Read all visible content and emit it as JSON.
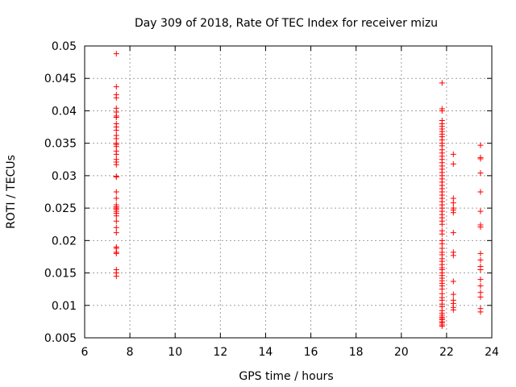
{
  "chart_data": {
    "type": "scatter",
    "title": "Day 309 of 2018, Rate Of TEC Index for receiver mizu",
    "xlabel": "GPS time / hours",
    "ylabel": "ROTI / TECUs",
    "xlim": [
      6,
      24
    ],
    "ylim": [
      0.005,
      0.05
    ],
    "xticks": [
      6,
      8,
      10,
      12,
      14,
      16,
      18,
      20,
      22,
      24
    ],
    "xtick_labels": [
      "6",
      "8",
      "10",
      "12",
      "14",
      "16",
      "18",
      "20",
      "22",
      "24"
    ],
    "yticks": [
      0.005,
      0.01,
      0.015,
      0.02,
      0.025,
      0.03,
      0.035,
      0.04,
      0.045,
      0.05
    ],
    "ytick_labels": [
      "0.005",
      "0.01",
      "0.015",
      "0.02",
      "0.025",
      "0.03",
      "0.035",
      "0.04",
      "0.045",
      "0.05"
    ],
    "grid": true,
    "marker": "plus",
    "color": "#ff0000",
    "series": [
      {
        "name": "ROTI",
        "points": [
          [
            7.4,
            0.0488
          ],
          [
            7.4,
            0.0437
          ],
          [
            7.4,
            0.0425
          ],
          [
            7.4,
            0.042
          ],
          [
            7.4,
            0.0404
          ],
          [
            7.4,
            0.0398
          ],
          [
            7.4,
            0.0392
          ],
          [
            7.4,
            0.039
          ],
          [
            7.4,
            0.038
          ],
          [
            7.4,
            0.0375
          ],
          [
            7.4,
            0.037
          ],
          [
            7.4,
            0.0362
          ],
          [
            7.4,
            0.0357
          ],
          [
            7.4,
            0.035
          ],
          [
            7.4,
            0.0348
          ],
          [
            7.4,
            0.0345
          ],
          [
            7.4,
            0.0338
          ],
          [
            7.4,
            0.0333
          ],
          [
            7.4,
            0.0325
          ],
          [
            7.4,
            0.0321
          ],
          [
            7.4,
            0.0317
          ],
          [
            7.4,
            0.0299
          ],
          [
            7.4,
            0.0298
          ],
          [
            7.4,
            0.0275
          ],
          [
            7.4,
            0.0265
          ],
          [
            7.4,
            0.0255
          ],
          [
            7.4,
            0.0252
          ],
          [
            7.4,
            0.025
          ],
          [
            7.4,
            0.0248
          ],
          [
            7.4,
            0.0245
          ],
          [
            7.4,
            0.0242
          ],
          [
            7.4,
            0.0238
          ],
          [
            7.4,
            0.023
          ],
          [
            7.4,
            0.022
          ],
          [
            7.4,
            0.0212
          ],
          [
            7.4,
            0.019
          ],
          [
            7.4,
            0.0188
          ],
          [
            7.4,
            0.0182
          ],
          [
            7.4,
            0.018
          ],
          [
            7.4,
            0.0155
          ],
          [
            7.4,
            0.015
          ],
          [
            7.4,
            0.0145
          ],
          [
            21.8,
            0.0443
          ],
          [
            21.8,
            0.0403
          ],
          [
            21.8,
            0.04
          ],
          [
            21.8,
            0.0385
          ],
          [
            21.8,
            0.038
          ],
          [
            21.8,
            0.0376
          ],
          [
            21.8,
            0.0372
          ],
          [
            21.8,
            0.0368
          ],
          [
            21.8,
            0.0364
          ],
          [
            21.8,
            0.036
          ],
          [
            21.8,
            0.0355
          ],
          [
            21.8,
            0.035
          ],
          [
            21.8,
            0.0346
          ],
          [
            21.8,
            0.034
          ],
          [
            21.8,
            0.0335
          ],
          [
            21.8,
            0.033
          ],
          [
            21.8,
            0.0325
          ],
          [
            21.8,
            0.032
          ],
          [
            21.8,
            0.0315
          ],
          [
            21.8,
            0.031
          ],
          [
            21.8,
            0.0305
          ],
          [
            21.8,
            0.03
          ],
          [
            21.8,
            0.0295
          ],
          [
            21.8,
            0.029
          ],
          [
            21.8,
            0.0285
          ],
          [
            21.8,
            0.028
          ],
          [
            21.8,
            0.0275
          ],
          [
            21.8,
            0.027
          ],
          [
            21.8,
            0.0265
          ],
          [
            21.8,
            0.026
          ],
          [
            21.8,
            0.0255
          ],
          [
            21.8,
            0.025
          ],
          [
            21.8,
            0.0245
          ],
          [
            21.8,
            0.024
          ],
          [
            21.8,
            0.0235
          ],
          [
            21.8,
            0.023
          ],
          [
            21.8,
            0.0225
          ],
          [
            21.8,
            0.0215
          ],
          [
            21.8,
            0.021
          ],
          [
            21.8,
            0.02
          ],
          [
            21.8,
            0.0195
          ],
          [
            21.8,
            0.0188
          ],
          [
            21.8,
            0.0182
          ],
          [
            21.8,
            0.0178
          ],
          [
            21.8,
            0.0172
          ],
          [
            21.8,
            0.0168
          ],
          [
            21.8,
            0.0163
          ],
          [
            21.8,
            0.0158
          ],
          [
            21.8,
            0.0155
          ],
          [
            21.8,
            0.015
          ],
          [
            21.8,
            0.0146
          ],
          [
            21.8,
            0.0142
          ],
          [
            21.8,
            0.0138
          ],
          [
            21.8,
            0.0134
          ],
          [
            21.8,
            0.013
          ],
          [
            21.8,
            0.0125
          ],
          [
            21.8,
            0.0118
          ],
          [
            21.8,
            0.0112
          ],
          [
            21.8,
            0.0108
          ],
          [
            21.8,
            0.0102
          ],
          [
            21.8,
            0.0098
          ],
          [
            21.8,
            0.0092
          ],
          [
            21.8,
            0.0088
          ],
          [
            21.8,
            0.0085
          ],
          [
            21.8,
            0.0082
          ],
          [
            21.8,
            0.008
          ],
          [
            21.8,
            0.0078
          ],
          [
            21.8,
            0.0075
          ],
          [
            21.8,
            0.0073
          ],
          [
            21.8,
            0.007
          ],
          [
            21.8,
            0.0068
          ],
          [
            22.3,
            0.0333
          ],
          [
            22.3,
            0.0318
          ],
          [
            22.3,
            0.0265
          ],
          [
            22.3,
            0.0258
          ],
          [
            22.3,
            0.025
          ],
          [
            22.3,
            0.0247
          ],
          [
            22.3,
            0.0243
          ],
          [
            22.3,
            0.0212
          ],
          [
            22.3,
            0.0182
          ],
          [
            22.3,
            0.0177
          ],
          [
            22.3,
            0.0137
          ],
          [
            22.3,
            0.0117
          ],
          [
            22.3,
            0.0108
          ],
          [
            22.3,
            0.0103
          ],
          [
            22.3,
            0.0097
          ],
          [
            22.3,
            0.0093
          ],
          [
            23.5,
            0.0347
          ],
          [
            23.5,
            0.0328
          ],
          [
            23.5,
            0.0326
          ],
          [
            23.5,
            0.0304
          ],
          [
            23.5,
            0.0275
          ],
          [
            23.5,
            0.0245
          ],
          [
            23.5,
            0.0224
          ],
          [
            23.5,
            0.0221
          ],
          [
            23.5,
            0.018
          ],
          [
            23.5,
            0.017
          ],
          [
            23.5,
            0.016
          ],
          [
            23.5,
            0.0155
          ],
          [
            23.5,
            0.014
          ],
          [
            23.5,
            0.013
          ],
          [
            23.5,
            0.012
          ],
          [
            23.5,
            0.0113
          ],
          [
            23.5,
            0.0095
          ],
          [
            23.5,
            0.009
          ]
        ]
      }
    ]
  }
}
